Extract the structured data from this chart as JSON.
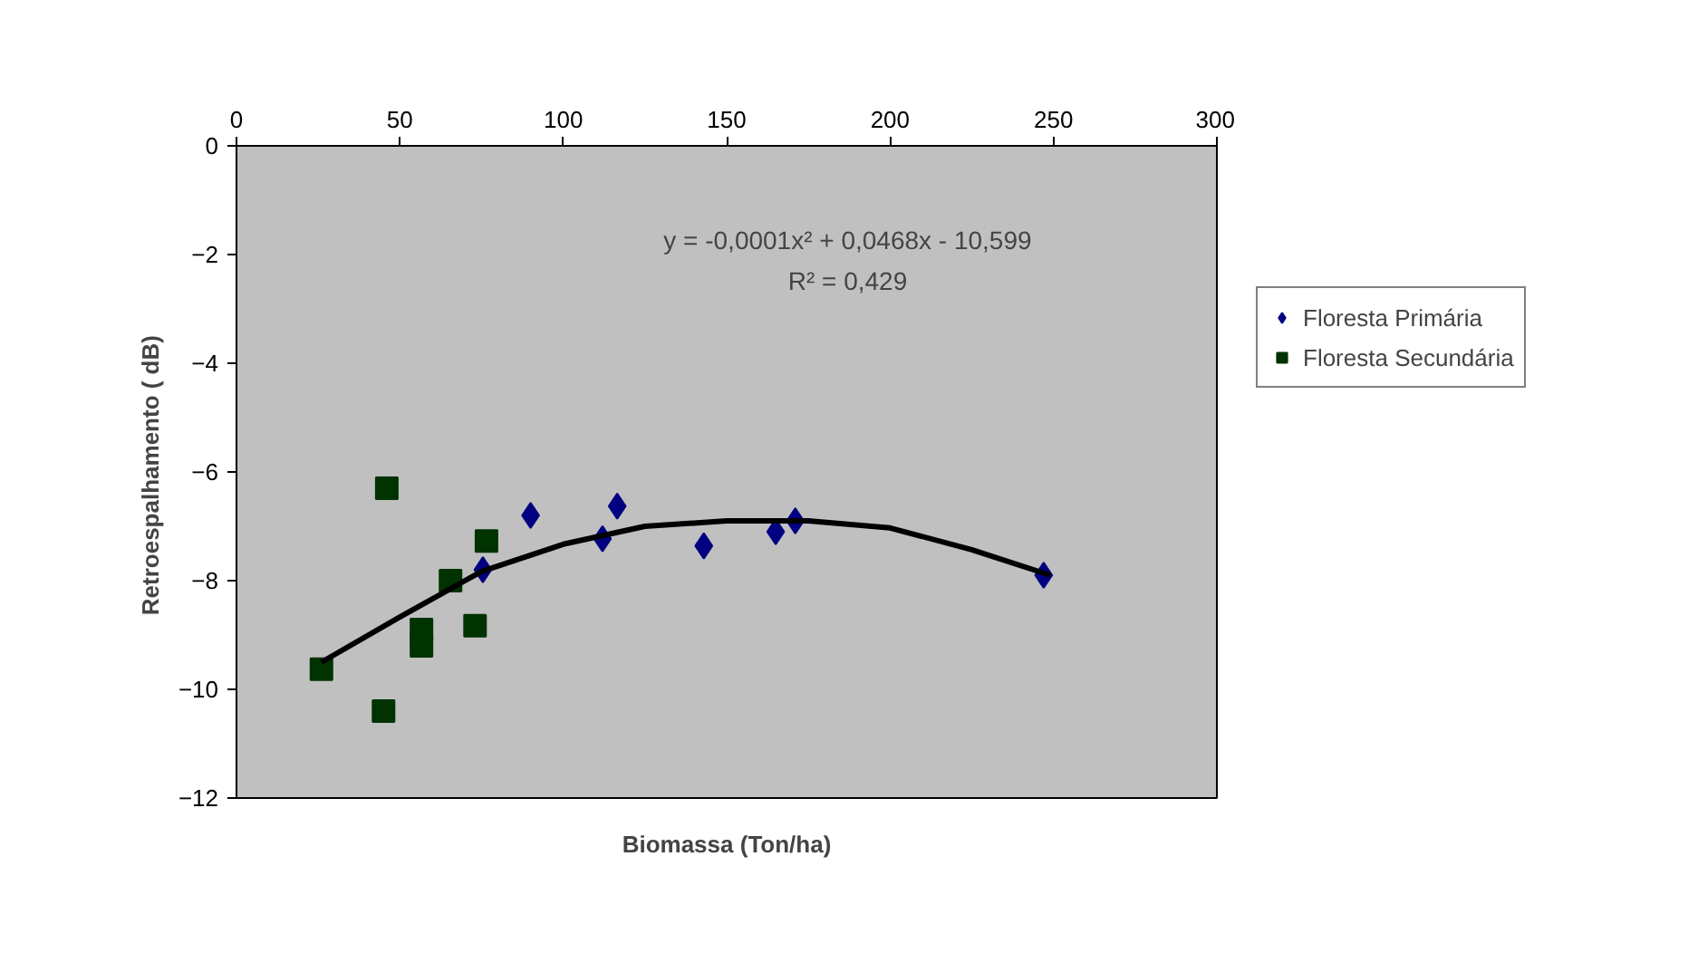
{
  "chart_data": {
    "type": "scatter",
    "xlabel": "Biomassa (Ton/ha)",
    "ylabel": "Retroespalhamento (  dB)",
    "xlim": [
      0,
      300
    ],
    "xticks": [
      0,
      50,
      100,
      150,
      200,
      250,
      300
    ],
    "ylim": [
      -12,
      0
    ],
    "yticks": [
      -12,
      -10,
      -8,
      -6,
      -4,
      -2,
      0
    ],
    "grid": false,
    "legend": "right",
    "annotations": [
      "y = -0,0001x² + 0,0468x - 10,599",
      "R² = 0,429"
    ],
    "series": [
      {
        "name": "Floresta Primária",
        "color": "#000080",
        "marker": "diamond",
        "x": [
          75.4,
          90,
          112,
          116.5,
          143,
          165,
          171,
          247
        ],
        "values": [
          -7.8,
          -6.8,
          -7.23,
          -6.63,
          -7.36,
          -7.1,
          -6.9,
          -7.9
        ]
      },
      {
        "name": "Floresta Secundária",
        "color": "#003300",
        "marker": "square",
        "x": [
          26,
          45,
          46,
          56.6,
          56.6,
          65.5,
          73,
          76.5
        ],
        "values": [
          -9.63,
          -10.4,
          -6.3,
          -8.9,
          -9.2,
          -8.0,
          -8.83,
          -7.27
        ]
      },
      {
        "type": "line",
        "color": "#000000",
        "line_style": "solid",
        "marker": "none",
        "x": [
          26,
          50,
          75,
          100,
          125,
          150,
          175,
          200,
          225,
          249
        ],
        "values": [
          -9.5,
          -8.67,
          -7.83,
          -7.33,
          -7.0,
          -6.9,
          -6.9,
          -7.03,
          -7.43,
          -7.9
        ]
      }
    ]
  }
}
